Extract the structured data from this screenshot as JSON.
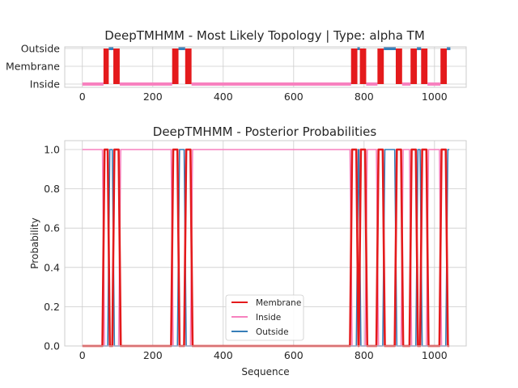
{
  "chart_data": [
    {
      "type": "line",
      "title": "DeepTMHMM - Most Likely Topology | Type: alpha TM",
      "xlim": [
        -50,
        1090
      ],
      "xticks": [
        0,
        200,
        400,
        600,
        800,
        1000
      ],
      "ylevels": [
        "Inside",
        "Membrane",
        "Outside"
      ],
      "grid": true,
      "colors": {
        "Membrane": "#e41a1c",
        "Inside": "#f781bf",
        "Outside": "#377eb8"
      },
      "topology": [
        {
          "label": "Inside",
          "start": 0,
          "end": 60
        },
        {
          "label": "Membrane",
          "start": 60,
          "end": 75
        },
        {
          "label": "Outside",
          "start": 75,
          "end": 88
        },
        {
          "label": "Membrane",
          "start": 88,
          "end": 106
        },
        {
          "label": "Inside",
          "start": 106,
          "end": 255
        },
        {
          "label": "Membrane",
          "start": 255,
          "end": 273
        },
        {
          "label": "Outside",
          "start": 273,
          "end": 292
        },
        {
          "label": "Membrane",
          "start": 292,
          "end": 310
        },
        {
          "label": "Inside",
          "start": 310,
          "end": 763
        },
        {
          "label": "Membrane",
          "start": 763,
          "end": 781
        },
        {
          "label": "Outside",
          "start": 781,
          "end": 788
        },
        {
          "label": "Membrane",
          "start": 788,
          "end": 806
        },
        {
          "label": "Inside",
          "start": 806,
          "end": 838
        },
        {
          "label": "Membrane",
          "start": 838,
          "end": 856
        },
        {
          "label": "Outside",
          "start": 856,
          "end": 890
        },
        {
          "label": "Membrane",
          "start": 890,
          "end": 908
        },
        {
          "label": "Inside",
          "start": 908,
          "end": 932
        },
        {
          "label": "Membrane",
          "start": 932,
          "end": 950
        },
        {
          "label": "Outside",
          "start": 950,
          "end": 962
        },
        {
          "label": "Membrane",
          "start": 962,
          "end": 980
        },
        {
          "label": "Inside",
          "start": 980,
          "end": 1017
        },
        {
          "label": "Membrane",
          "start": 1017,
          "end": 1035
        },
        {
          "label": "Outside",
          "start": 1035,
          "end": 1045
        }
      ]
    },
    {
      "type": "line",
      "title": "DeepTMHMM - Posterior Probabilities",
      "xlabel": "Sequence",
      "ylabel": "Probability",
      "xlim": [
        -50,
        1090
      ],
      "ylim": [
        0,
        1.0
      ],
      "xticks": [
        0,
        200,
        400,
        600,
        800,
        1000
      ],
      "yticks": [
        "0.0",
        "0.2",
        "0.4",
        "0.6",
        "0.8",
        "1.0"
      ],
      "grid": true,
      "legend_position": "lower-center",
      "series": [
        {
          "name": "Membrane",
          "color": "#e41a1c"
        },
        {
          "name": "Inside",
          "color": "#f781bf"
        },
        {
          "name": "Outside",
          "color": "#377eb8"
        }
      ]
    }
  ]
}
